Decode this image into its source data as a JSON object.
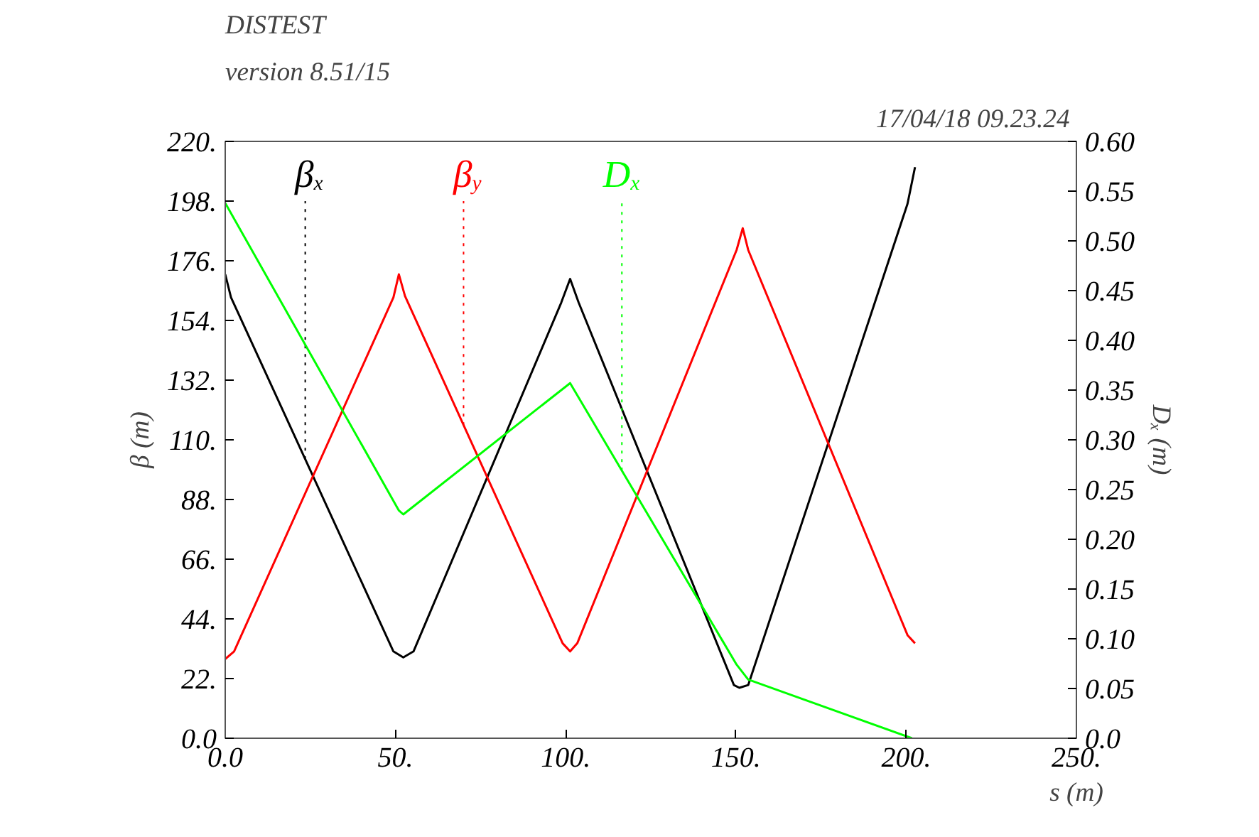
{
  "chart_data": {
    "type": "line",
    "title": "DISTEST",
    "subtitle": "version 8.51/15",
    "annotations": [
      "17/04/18  09.23.24"
    ],
    "xlabel": "s (m)",
    "ylabel": "β (m)",
    "y2label": "Dₓ (m)",
    "xlim": [
      0,
      250
    ],
    "xticks": [
      {
        "value": 0,
        "label": "0.0"
      },
      {
        "value": 50,
        "label": "50."
      },
      {
        "value": 100,
        "label": "100."
      },
      {
        "value": 150,
        "label": "150."
      },
      {
        "value": 200,
        "label": "200."
      },
      {
        "value": 250,
        "label": "250."
      }
    ],
    "ylim": [
      0,
      220
    ],
    "yticks": [
      {
        "value": 0,
        "label": "0.0"
      },
      {
        "value": 22,
        "label": "22."
      },
      {
        "value": 44,
        "label": "44."
      },
      {
        "value": 66,
        "label": "66."
      },
      {
        "value": 88,
        "label": "88."
      },
      {
        "value": 110,
        "label": "110."
      },
      {
        "value": 132,
        "label": "132."
      },
      {
        "value": 154,
        "label": "154."
      },
      {
        "value": 176,
        "label": "176."
      },
      {
        "value": 198,
        "label": "198."
      },
      {
        "value": 220,
        "label": "220."
      }
    ],
    "y2lim": [
      0,
      0.6
    ],
    "y2ticks": [
      {
        "value": 0,
        "label": "0.0"
      },
      0.05,
      {
        "value": 0.1,
        "label": "0.10"
      },
      0.15,
      {
        "value": 0.2,
        "label": "0.20"
      },
      0.25,
      {
        "value": 0.3,
        "label": "0.30"
      },
      0.35,
      {
        "value": 0.4,
        "label": "0.40"
      },
      0.45,
      {
        "value": 0.5,
        "label": "0.50"
      },
      0.55,
      {
        "value": 0.6,
        "label": "0.60"
      }
    ],
    "grid": false,
    "marker": "none",
    "line_style": "solid",
    "series": [
      {
        "name": "β$_{x}$",
        "color": "#000000",
        "x": [
          0,
          1.7,
          49.4,
          52.3,
          55.3,
          98.7,
          101.3,
          103.8,
          149.4,
          151,
          153.6,
          200.4,
          202.6
        ],
        "values": [
          171,
          162.5,
          32,
          29.8,
          32,
          160.6,
          169.3,
          160.6,
          19.6,
          18.6,
          19.6,
          197,
          210.5
        ]
      },
      {
        "name": "β$_{y}$",
        "color": "#ff0000",
        "x": [
          0,
          2.6,
          49.4,
          51,
          52.8,
          99.1,
          101.3,
          103.4,
          150.2,
          152,
          153.6,
          200.4,
          202.6
        ],
        "values": [
          29.2,
          32,
          162.5,
          171,
          163,
          35,
          32,
          35,
          180,
          188,
          180,
          38,
          35
        ]
      },
      {
        "name": "D$_{x}$",
        "color": "#00ff00",
        "axis": "y2",
        "x": [
          0,
          51,
          52.3,
          101.3,
          150.2,
          153.6,
          201.7
        ],
        "values": [
          0.538,
          0.229,
          0.225,
          0.357,
          0.074,
          0.059,
          0
        ]
      }
    ]
  }
}
